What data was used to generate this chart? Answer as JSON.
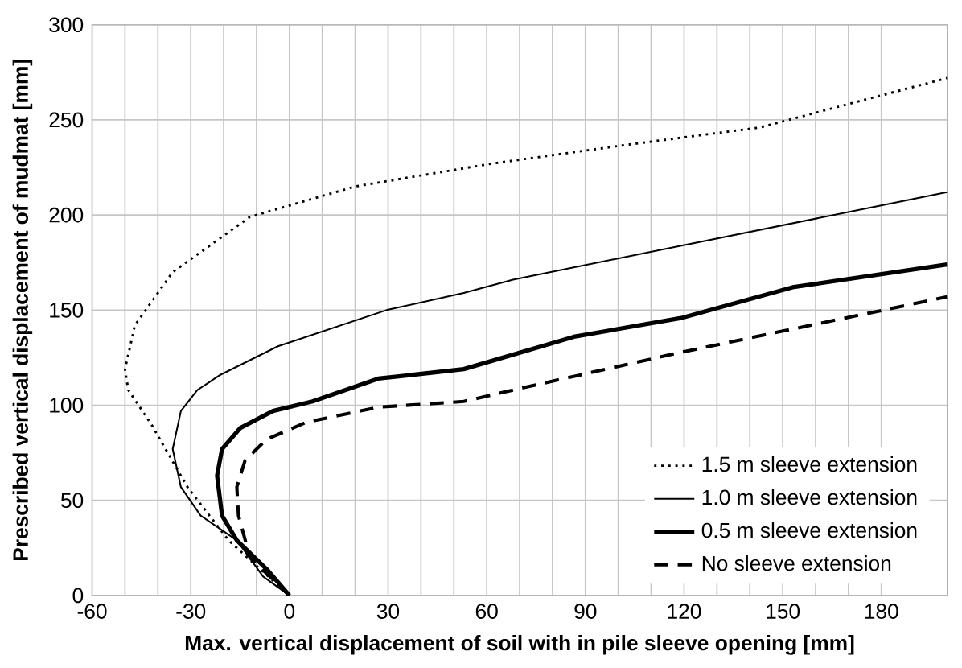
{
  "chart_data": {
    "type": "line",
    "xlabel": "Max. vertical displacement of soil with in pile sleeve opening [mm]",
    "ylabel": "Prescribed vertical displacement of mudmat [mm]",
    "xlim": [
      -60,
      200
    ],
    "ylim": [
      0,
      300
    ],
    "xticks": [
      -60,
      -30,
      0,
      30,
      60,
      90,
      120,
      150,
      180
    ],
    "yticks": [
      0,
      50,
      100,
      150,
      200,
      250,
      300
    ],
    "grid": true,
    "legend": "bottom right",
    "series": [
      {
        "name": "1.5 m sleeve extension",
        "color": "#000000",
        "line_style": "dotted",
        "x": [
          0,
          -9,
          -18.5,
          -31,
          -42,
          -49,
          -50,
          -47,
          -35.5,
          -12,
          20,
          61.5,
          103,
          143,
          200
        ],
        "values": [
          0,
          14,
          29,
          57,
          90,
          108,
          119,
          142,
          170,
          199,
          215,
          227,
          237,
          246,
          272
        ]
      },
      {
        "name": "1.0 m sleeve extension",
        "color": "#000000",
        "line_style": "solid",
        "x": [
          0,
          -8,
          -16,
          -27,
          -33,
          -35.5,
          -33,
          -28,
          -21,
          -3.5,
          29.5,
          53,
          68,
          119.5,
          200
        ],
        "values": [
          0,
          10,
          29,
          42,
          57,
          77,
          97,
          108,
          116,
          131,
          150,
          159,
          166,
          184,
          212
        ]
      },
      {
        "name": "0.5 m sleeve extension",
        "color": "#000000",
        "line_style": "solid",
        "x": [
          0,
          -7,
          -16,
          -20.5,
          -22,
          -20.5,
          -15,
          -5,
          7,
          27,
          53,
          86.5,
          119.5,
          153,
          200
        ],
        "values": [
          0,
          14,
          29,
          42,
          63,
          77,
          88,
          97,
          102,
          114,
          119,
          136,
          146,
          162,
          174
        ]
      },
      {
        "name": "No sleeve extension",
        "color": "#000000",
        "line_style": "dashed",
        "x": [
          0,
          -12,
          -15.5,
          -16,
          -13.5,
          -7,
          5,
          27,
          53,
          68,
          119.5,
          200
        ],
        "values": [
          0,
          20,
          42,
          57,
          71,
          82,
          91,
          99,
          102,
          108,
          128,
          157
        ]
      }
    ]
  }
}
